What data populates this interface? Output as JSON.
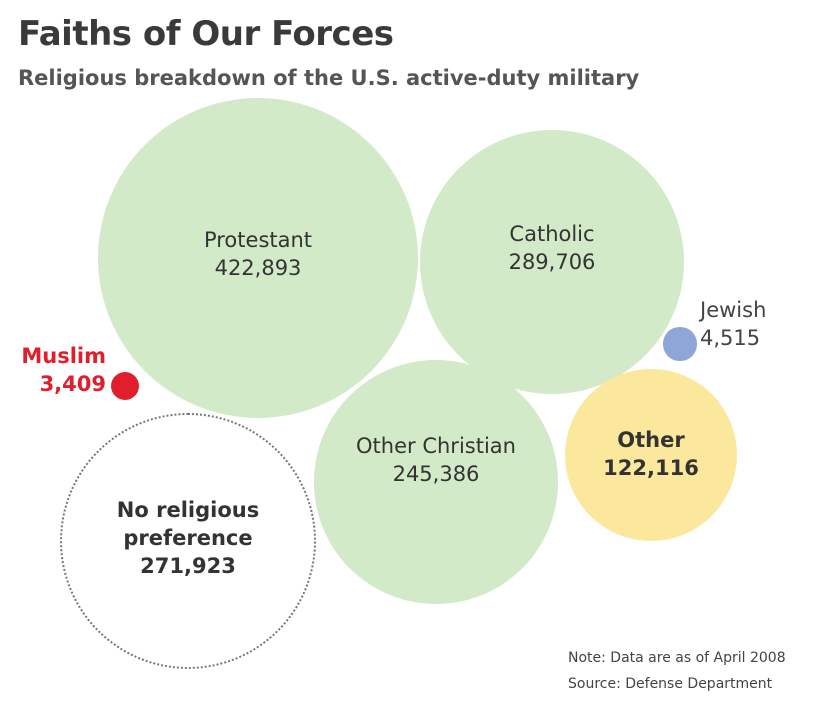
{
  "chart_data": {
    "type": "bubble",
    "title": "Faiths of Our Forces",
    "subtitle": "Religious breakdown of the U.S. active-duty military",
    "categories": [
      "Protestant",
      "Catholic",
      "Other Christian",
      "No religious preference",
      "Other",
      "Jewish",
      "Muslim"
    ],
    "values": [
      422893,
      289706,
      245386,
      271923,
      122116,
      4515,
      3409
    ],
    "value_labels": [
      "422,893",
      "289,706",
      "245,386",
      "271,923",
      "122,116",
      "4,515",
      "3,409"
    ],
    "colors": [
      "#d3eac8",
      "#d3eac8",
      "#d3eac8",
      "#ffffff",
      "#fbe89c",
      "#8ea7d8",
      "#e11f2c"
    ],
    "annotations": [
      "Note: Data are as of April 2008",
      "Source: Defense Department"
    ]
  }
}
